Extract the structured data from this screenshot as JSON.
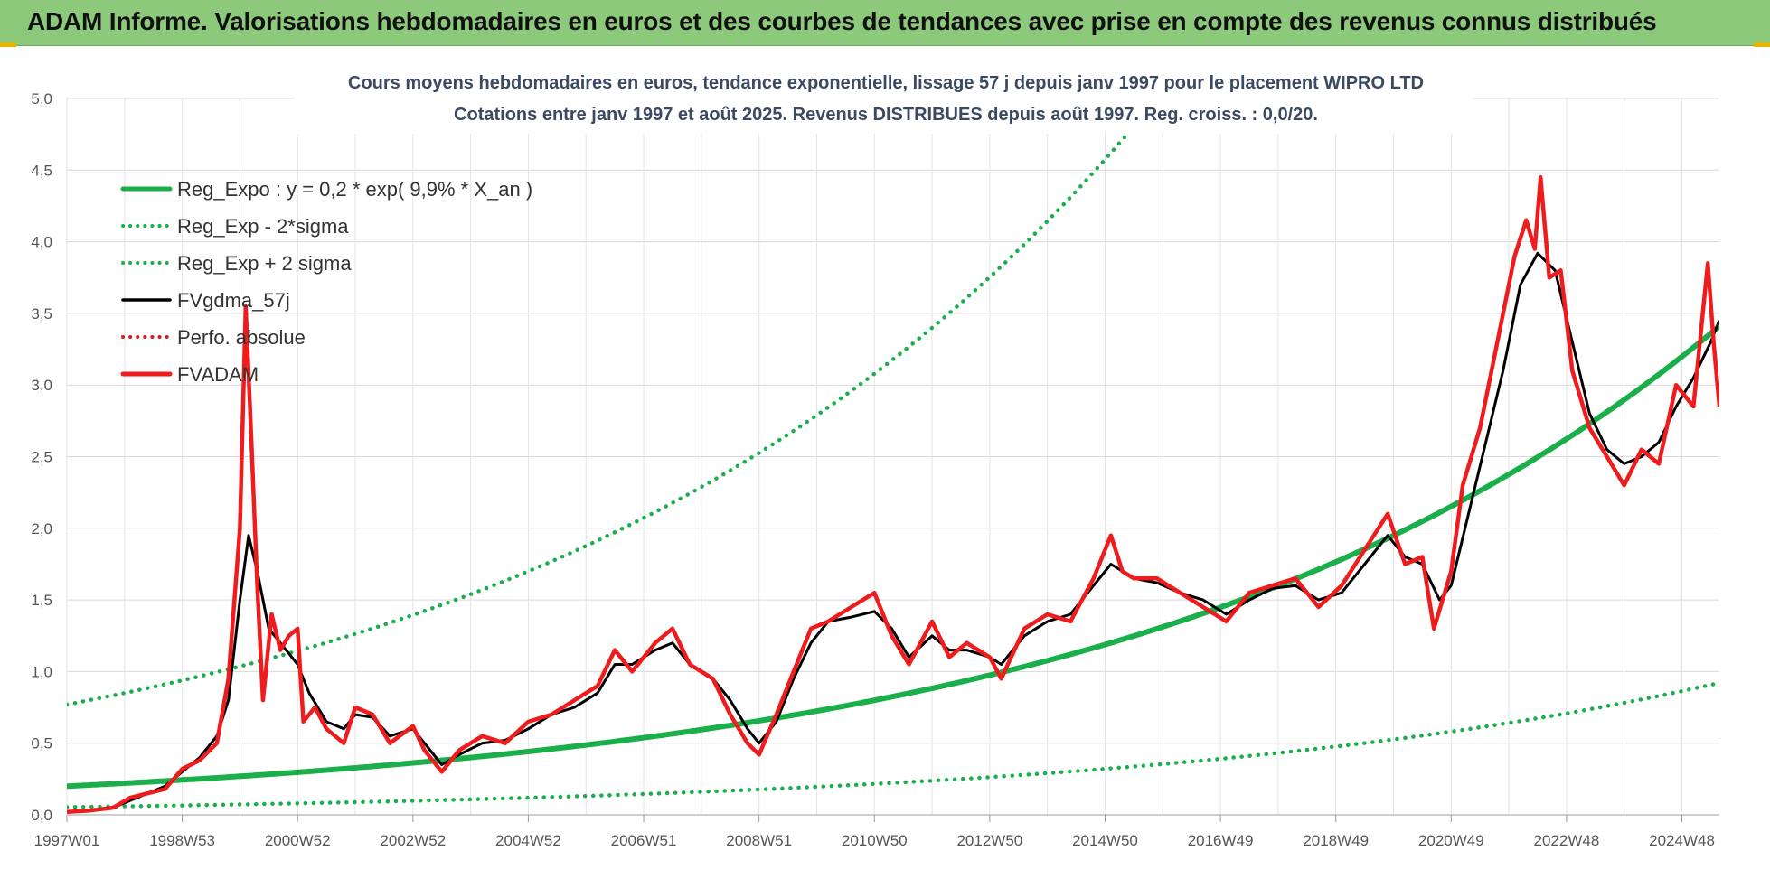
{
  "banner": {
    "title": "ADAM Informe. Valorisations hebdomadaires en euros et des courbes de tendances avec prise en compte des revenus connus distribués"
  },
  "chart_data": {
    "type": "line",
    "title": "Cours moyens hebdomadaires en euros, tendance exponentielle, lissage 57 j depuis janv 1997 pour le placement WIPRO LTD",
    "subtitle": "Cotations entre janv 1997 et août 2025.  Revenus DISTRIBUES depuis août 1997. Reg. croiss. : 0,0/20.",
    "xlabel": "",
    "ylabel": "",
    "ylim": [
      0,
      5
    ],
    "xlim": [
      1997.0,
      2025.65
    ],
    "grid": true,
    "legend_position": "top-left",
    "y_ticks": [
      "0,0",
      "0,5",
      "1,0",
      "1,5",
      "2,0",
      "2,5",
      "3,0",
      "3,5",
      "4,0",
      "4,5",
      "5,0"
    ],
    "x_ticks": [
      {
        "label": "1997W01",
        "x": 1997.0
      },
      {
        "label": "1998W53",
        "x": 1999.0
      },
      {
        "label": "2000W52",
        "x": 2001.0
      },
      {
        "label": "2002W52",
        "x": 2003.0
      },
      {
        "label": "2004W52",
        "x": 2005.0
      },
      {
        "label": "2006W51",
        "x": 2007.0
      },
      {
        "label": "2008W51",
        "x": 2009.0
      },
      {
        "label": "2010W50",
        "x": 2011.0
      },
      {
        "label": "2012W50",
        "x": 2013.0
      },
      {
        "label": "2014W50",
        "x": 2015.0
      },
      {
        "label": "2016W49",
        "x": 2017.0
      },
      {
        "label": "2018W49",
        "x": 2019.0
      },
      {
        "label": "2020W49",
        "x": 2021.0
      },
      {
        "label": "2022W48",
        "x": 2023.0
      },
      {
        "label": "2024W48",
        "x": 2025.0
      }
    ],
    "regression": {
      "a": 0.2,
      "rate": 0.099,
      "x0": 1997.0,
      "factor_low": 0.27,
      "factor_high": 3.85
    },
    "series": [
      {
        "name": "Reg_Expo : y = 0,2 * exp( 9,9% *  X_an )",
        "color": "#1aaf4b",
        "style": "solid-thick",
        "kind": "regression"
      },
      {
        "name": "Reg_Exp - 2*sigma",
        "color": "#1aaf4b",
        "style": "dotted",
        "kind": "regression_low"
      },
      {
        "name": "Reg_Exp + 2 sigma",
        "color": "#1aaf4b",
        "style": "dotted",
        "kind": "regression_high"
      },
      {
        "name": "FVgdma_57j",
        "color": "#000000",
        "style": "solid",
        "kind": "data",
        "points": [
          [
            1997.0,
            0.02
          ],
          [
            1997.4,
            0.03
          ],
          [
            1997.8,
            0.05
          ],
          [
            1998.1,
            0.1
          ],
          [
            1998.4,
            0.15
          ],
          [
            1998.7,
            0.2
          ],
          [
            1999.0,
            0.3
          ],
          [
            1999.3,
            0.4
          ],
          [
            1999.6,
            0.55
          ],
          [
            1999.8,
            0.8
          ],
          [
            2000.0,
            1.5
          ],
          [
            2000.15,
            1.95
          ],
          [
            2000.3,
            1.7
          ],
          [
            2000.5,
            1.3
          ],
          [
            2000.8,
            1.15
          ],
          [
            2001.0,
            1.05
          ],
          [
            2001.2,
            0.85
          ],
          [
            2001.5,
            0.65
          ],
          [
            2001.8,
            0.6
          ],
          [
            2002.0,
            0.7
          ],
          [
            2002.3,
            0.68
          ],
          [
            2002.6,
            0.55
          ],
          [
            2003.0,
            0.6
          ],
          [
            2003.2,
            0.5
          ],
          [
            2003.5,
            0.35
          ],
          [
            2003.8,
            0.42
          ],
          [
            2004.2,
            0.5
          ],
          [
            2004.6,
            0.52
          ],
          [
            2005.0,
            0.6
          ],
          [
            2005.4,
            0.7
          ],
          [
            2005.8,
            0.75
          ],
          [
            2006.2,
            0.85
          ],
          [
            2006.5,
            1.05
          ],
          [
            2006.8,
            1.05
          ],
          [
            2007.2,
            1.15
          ],
          [
            2007.5,
            1.2
          ],
          [
            2007.8,
            1.05
          ],
          [
            2008.2,
            0.95
          ],
          [
            2008.5,
            0.8
          ],
          [
            2008.8,
            0.6
          ],
          [
            2009.0,
            0.5
          ],
          [
            2009.3,
            0.65
          ],
          [
            2009.6,
            0.95
          ],
          [
            2009.9,
            1.2
          ],
          [
            2010.2,
            1.35
          ],
          [
            2010.6,
            1.38
          ],
          [
            2011.0,
            1.42
          ],
          [
            2011.3,
            1.3
          ],
          [
            2011.6,
            1.1
          ],
          [
            2012.0,
            1.25
          ],
          [
            2012.3,
            1.15
          ],
          [
            2012.6,
            1.15
          ],
          [
            2013.0,
            1.1
          ],
          [
            2013.2,
            1.05
          ],
          [
            2013.6,
            1.25
          ],
          [
            2014.0,
            1.35
          ],
          [
            2014.4,
            1.4
          ],
          [
            2014.8,
            1.6
          ],
          [
            2015.1,
            1.75
          ],
          [
            2015.5,
            1.65
          ],
          [
            2015.9,
            1.62
          ],
          [
            2016.3,
            1.55
          ],
          [
            2016.7,
            1.5
          ],
          [
            2017.1,
            1.4
          ],
          [
            2017.5,
            1.5
          ],
          [
            2017.9,
            1.58
          ],
          [
            2018.3,
            1.6
          ],
          [
            2018.7,
            1.5
          ],
          [
            2019.1,
            1.55
          ],
          [
            2019.5,
            1.75
          ],
          [
            2019.9,
            1.95
          ],
          [
            2020.2,
            1.8
          ],
          [
            2020.5,
            1.75
          ],
          [
            2020.8,
            1.5
          ],
          [
            2021.0,
            1.6
          ],
          [
            2021.3,
            2.1
          ],
          [
            2021.6,
            2.6
          ],
          [
            2021.9,
            3.1
          ],
          [
            2022.2,
            3.7
          ],
          [
            2022.5,
            3.92
          ],
          [
            2022.8,
            3.8
          ],
          [
            2023.1,
            3.3
          ],
          [
            2023.4,
            2.8
          ],
          [
            2023.7,
            2.55
          ],
          [
            2024.0,
            2.45
          ],
          [
            2024.3,
            2.5
          ],
          [
            2024.6,
            2.6
          ],
          [
            2024.9,
            2.85
          ],
          [
            2025.2,
            3.05
          ],
          [
            2025.5,
            3.3
          ],
          [
            2025.65,
            3.45
          ]
        ]
      },
      {
        "name": "Perfo. absolue",
        "color": "#d62020",
        "style": "dotted",
        "kind": "none"
      },
      {
        "name": "FVADAM",
        "color": "#ee1c1c",
        "style": "solid-thick",
        "kind": "data",
        "points": [
          [
            1997.0,
            0.02
          ],
          [
            1997.4,
            0.03
          ],
          [
            1997.8,
            0.05
          ],
          [
            1998.1,
            0.12
          ],
          [
            1998.4,
            0.15
          ],
          [
            1998.7,
            0.18
          ],
          [
            1999.0,
            0.32
          ],
          [
            1999.3,
            0.38
          ],
          [
            1999.6,
            0.5
          ],
          [
            1999.8,
            0.95
          ],
          [
            2000.0,
            2.0
          ],
          [
            2000.1,
            3.55
          ],
          [
            2000.2,
            2.6
          ],
          [
            2000.3,
            1.6
          ],
          [
            2000.4,
            0.8
          ],
          [
            2000.55,
            1.4
          ],
          [
            2000.7,
            1.15
          ],
          [
            2000.85,
            1.25
          ],
          [
            2001.0,
            1.3
          ],
          [
            2001.1,
            0.65
          ],
          [
            2001.3,
            0.75
          ],
          [
            2001.5,
            0.6
          ],
          [
            2001.8,
            0.5
          ],
          [
            2002.0,
            0.75
          ],
          [
            2002.3,
            0.7
          ],
          [
            2002.6,
            0.5
          ],
          [
            2003.0,
            0.62
          ],
          [
            2003.2,
            0.45
          ],
          [
            2003.5,
            0.3
          ],
          [
            2003.8,
            0.45
          ],
          [
            2004.2,
            0.55
          ],
          [
            2004.6,
            0.5
          ],
          [
            2005.0,
            0.65
          ],
          [
            2005.4,
            0.7
          ],
          [
            2005.8,
            0.8
          ],
          [
            2006.2,
            0.9
          ],
          [
            2006.5,
            1.15
          ],
          [
            2006.8,
            1.0
          ],
          [
            2007.2,
            1.2
          ],
          [
            2007.5,
            1.3
          ],
          [
            2007.8,
            1.05
          ],
          [
            2008.2,
            0.95
          ],
          [
            2008.5,
            0.7
          ],
          [
            2008.8,
            0.5
          ],
          [
            2009.0,
            0.42
          ],
          [
            2009.3,
            0.7
          ],
          [
            2009.6,
            1.0
          ],
          [
            2009.9,
            1.3
          ],
          [
            2010.2,
            1.35
          ],
          [
            2010.6,
            1.45
          ],
          [
            2011.0,
            1.55
          ],
          [
            2011.3,
            1.25
          ],
          [
            2011.6,
            1.05
          ],
          [
            2012.0,
            1.35
          ],
          [
            2012.3,
            1.1
          ],
          [
            2012.6,
            1.2
          ],
          [
            2013.0,
            1.1
          ],
          [
            2013.2,
            0.95
          ],
          [
            2013.6,
            1.3
          ],
          [
            2014.0,
            1.4
          ],
          [
            2014.4,
            1.35
          ],
          [
            2014.8,
            1.65
          ],
          [
            2015.1,
            1.95
          ],
          [
            2015.3,
            1.7
          ],
          [
            2015.5,
            1.65
          ],
          [
            2015.9,
            1.65
          ],
          [
            2016.3,
            1.55
          ],
          [
            2016.7,
            1.45
          ],
          [
            2017.1,
            1.35
          ],
          [
            2017.5,
            1.55
          ],
          [
            2017.9,
            1.6
          ],
          [
            2018.3,
            1.65
          ],
          [
            2018.7,
            1.45
          ],
          [
            2019.1,
            1.6
          ],
          [
            2019.5,
            1.85
          ],
          [
            2019.9,
            2.1
          ],
          [
            2020.2,
            1.75
          ],
          [
            2020.5,
            1.8
          ],
          [
            2020.7,
            1.3
          ],
          [
            2021.0,
            1.7
          ],
          [
            2021.2,
            2.3
          ],
          [
            2021.5,
            2.7
          ],
          [
            2021.8,
            3.3
          ],
          [
            2022.1,
            3.9
          ],
          [
            2022.3,
            4.15
          ],
          [
            2022.45,
            3.95
          ],
          [
            2022.55,
            4.45
          ],
          [
            2022.7,
            3.75
          ],
          [
            2022.9,
            3.8
          ],
          [
            2023.1,
            3.1
          ],
          [
            2023.4,
            2.7
          ],
          [
            2023.7,
            2.5
          ],
          [
            2024.0,
            2.3
          ],
          [
            2024.3,
            2.55
          ],
          [
            2024.6,
            2.45
          ],
          [
            2024.9,
            3.0
          ],
          [
            2025.2,
            2.85
          ],
          [
            2025.45,
            3.85
          ],
          [
            2025.55,
            3.3
          ],
          [
            2025.65,
            2.85
          ]
        ]
      }
    ]
  }
}
